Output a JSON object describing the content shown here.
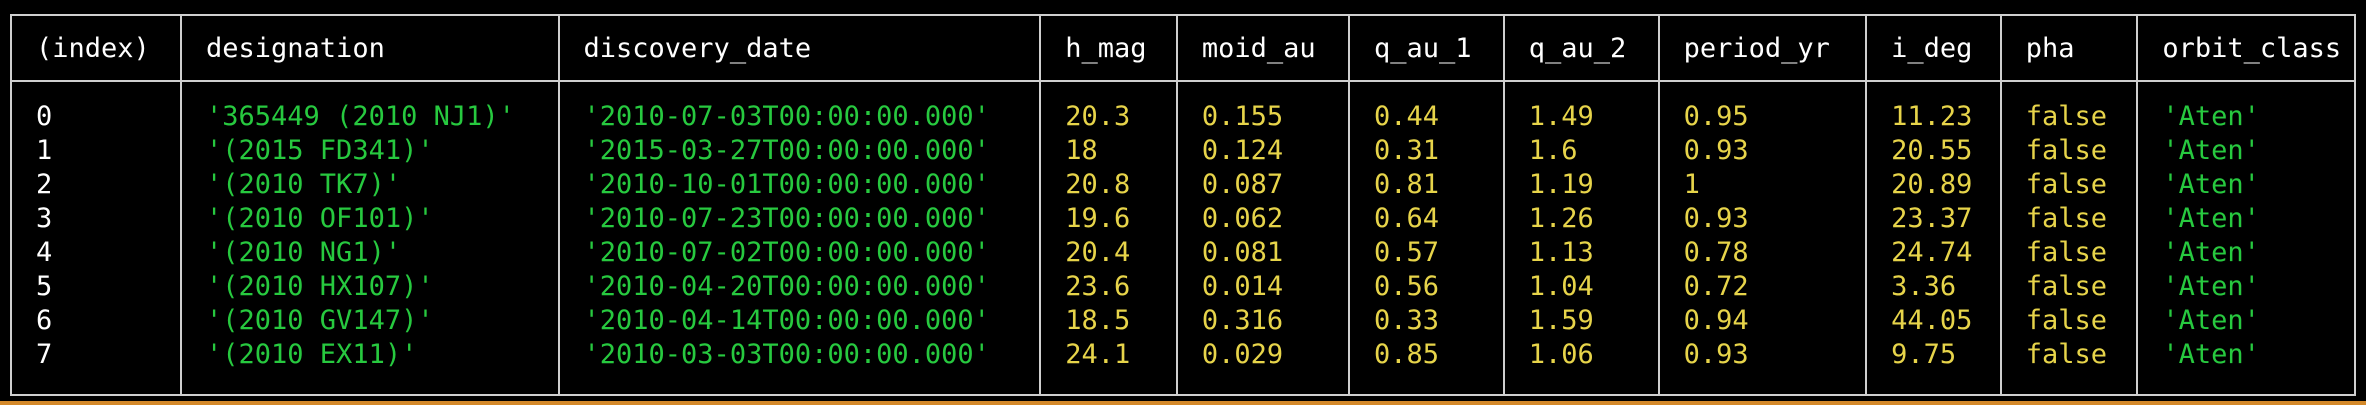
{
  "colors": {
    "background": "#000000",
    "border": "#cfcfcf",
    "string_value": "#27c93f",
    "numeric_value": "#e7d44a",
    "index_value": "#ffffff",
    "accent_bar": "#d4892a"
  },
  "table": {
    "headers": [
      "(index)",
      "designation",
      "discovery_date",
      "h_mag",
      "moid_au",
      "q_au_1",
      "q_au_2",
      "period_yr",
      "i_deg",
      "pha",
      "orbit_class"
    ],
    "rows": [
      [
        "0",
        "'365449 (2010 NJ1)'",
        "'2010-07-03T00:00:00.000'",
        "20.3",
        "0.155",
        "0.44",
        "1.49",
        "0.95",
        "11.23",
        "false",
        "'Aten'"
      ],
      [
        "1",
        "'(2015 FD341)'",
        "'2015-03-27T00:00:00.000'",
        "18",
        "0.124",
        "0.31",
        "1.6",
        "0.93",
        "20.55",
        "false",
        "'Aten'"
      ],
      [
        "2",
        "'(2010 TK7)'",
        "'2010-10-01T00:00:00.000'",
        "20.8",
        "0.087",
        "0.81",
        "1.19",
        "1",
        "20.89",
        "false",
        "'Aten'"
      ],
      [
        "3",
        "'(2010 OF101)'",
        "'2010-07-23T00:00:00.000'",
        "19.6",
        "0.062",
        "0.64",
        "1.26",
        "0.93",
        "23.37",
        "false",
        "'Aten'"
      ],
      [
        "4",
        "'(2010 NG1)'",
        "'2010-07-02T00:00:00.000'",
        "20.4",
        "0.081",
        "0.57",
        "1.13",
        "0.78",
        "24.74",
        "false",
        "'Aten'"
      ],
      [
        "5",
        "'(2010 HX107)'",
        "'2010-04-20T00:00:00.000'",
        "23.6",
        "0.014",
        "0.56",
        "1.04",
        "0.72",
        "3.36",
        "false",
        "'Aten'"
      ],
      [
        "6",
        "'(2010 GV147)'",
        "'2010-04-14T00:00:00.000'",
        "18.5",
        "0.316",
        "0.33",
        "1.59",
        "0.94",
        "44.05",
        "false",
        "'Aten'"
      ],
      [
        "7",
        "'(2010 EX11)'",
        "'2010-03-03T00:00:00.000'",
        "24.1",
        "0.029",
        "0.85",
        "1.06",
        "0.93",
        "9.75",
        "false",
        "'Aten'"
      ]
    ]
  }
}
